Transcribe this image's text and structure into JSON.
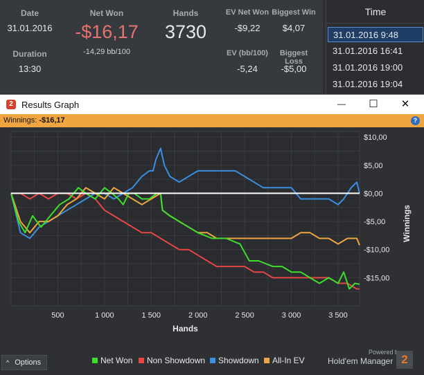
{
  "summary": {
    "date_label": "Date",
    "date": "31.01.2016",
    "duration_label": "Duration",
    "duration": "13:30",
    "net_won_label": "Net Won",
    "net_won": "-$16,17",
    "bb_per_100": "-14,29 bb/100",
    "hands_label": "Hands",
    "hands": "3730",
    "ev_net_won_label": "EV Net Won",
    "ev_net_won": "-$9,22",
    "biggest_win_label": "Biggest Win",
    "biggest_win": "$4,07",
    "ev_bb_label": "EV (bb/100)",
    "ev_bb": "-5,24",
    "biggest_loss_label": "Biggest Loss",
    "biggest_loss": "-$5,00",
    "net_color": "#e8726e"
  },
  "time_panel": {
    "header": "Time",
    "rows": [
      "31.01.2016 9:48",
      "31.01.2016 16:41",
      "31.01.2016 19:00",
      "31.01.2016 19:04"
    ],
    "selected": 0
  },
  "window": {
    "title": "Results Graph",
    "app_icon": "2",
    "minimize_glyph": "—",
    "maximize_glyph": "☐",
    "close_glyph": "✕",
    "winnings_label": "Winnings:",
    "winnings_value": "-$16,17",
    "help_glyph": "?"
  },
  "footer": {
    "options_label": "Options",
    "options_icon": "^",
    "powered_by": "Powered by",
    "brand": "Hold'em Manager",
    "brand_logo": "2"
  },
  "chart_data": {
    "type": "line",
    "xlabel": "Hands",
    "ylabel": "Winnings",
    "xlim": [
      0,
      3730
    ],
    "ylim": [
      -20,
      11
    ],
    "x_ticks": [
      500,
      1000,
      1500,
      2000,
      2500,
      3000,
      3500
    ],
    "x_tick_labels": [
      "500",
      "1 000",
      "1 500",
      "2 000",
      "2 500",
      "3 000",
      "3 500"
    ],
    "y_ticks": [
      10,
      5,
      0,
      -5,
      -10,
      -15
    ],
    "y_tick_labels": [
      "$10,00",
      "$5,00",
      "$0,00",
      "-$5,00",
      "-$10,00",
      "-$15,00"
    ],
    "grid": true,
    "legend_position": "bottom",
    "series": [
      {
        "name": "Net Won",
        "color": "#3dde2c",
        "x": [
          0,
          80,
          150,
          230,
          320,
          420,
          520,
          620,
          720,
          800,
          900,
          1000,
          1080,
          1150,
          1200,
          1260,
          1320,
          1400,
          1480,
          1560,
          1600,
          1620,
          1700,
          1800,
          1900,
          2000,
          2150,
          2300,
          2450,
          2550,
          2650,
          2800,
          2900,
          3000,
          3100,
          3200,
          3300,
          3400,
          3500,
          3560,
          3620,
          3680,
          3730
        ],
        "y": [
          0,
          -5,
          -7,
          -4,
          -6,
          -4,
          -2,
          -1,
          1,
          0,
          -1,
          1,
          0,
          -1,
          -2,
          0,
          0,
          -1,
          -1,
          0,
          0,
          -3,
          -4,
          -5,
          -6,
          -7,
          -8,
          -8,
          -9,
          -12,
          -12,
          -13,
          -13,
          -14,
          -14,
          -15,
          -16,
          -15,
          -16,
          -14,
          -17,
          -16,
          -16.17
        ]
      },
      {
        "name": "Non Showdown",
        "color": "#e84545",
        "x": [
          0,
          100,
          200,
          300,
          400,
          500,
          600,
          700,
          800,
          900,
          1000,
          1100,
          1200,
          1300,
          1400,
          1500,
          1600,
          1700,
          1800,
          1900,
          2000,
          2100,
          2200,
          2300,
          2400,
          2500,
          2600,
          2700,
          2800,
          2900,
          3000,
          3100,
          3200,
          3300,
          3400,
          3500,
          3600,
          3700,
          3730
        ],
        "y": [
          0,
          0,
          -1,
          0,
          -1,
          0,
          0,
          -1,
          0,
          -1,
          -3,
          -4,
          -5,
          -6,
          -7,
          -7,
          -8,
          -9,
          -10,
          -10,
          -11,
          -12,
          -13,
          -13,
          -13,
          -13,
          -14,
          -14,
          -15,
          -15,
          -15,
          -15,
          -15,
          -15,
          -15,
          -16,
          -16,
          -17,
          -17
        ]
      },
      {
        "name": "Showdown",
        "color": "#3a8fe0",
        "x": [
          0,
          100,
          200,
          300,
          400,
          500,
          600,
          700,
          800,
          900,
          1000,
          1100,
          1200,
          1300,
          1400,
          1480,
          1520,
          1550,
          1600,
          1640,
          1700,
          1800,
          1900,
          2000,
          2100,
          2200,
          2300,
          2400,
          2500,
          2600,
          2700,
          2800,
          2900,
          3000,
          3100,
          3200,
          3300,
          3400,
          3500,
          3560,
          3600,
          3640,
          3700,
          3730
        ],
        "y": [
          0,
          -7,
          -8,
          -6,
          -5,
          -4,
          -3,
          -2,
          -1,
          0,
          0,
          -1,
          0,
          1,
          3,
          4,
          4,
          6,
          8,
          5,
          3,
          2,
          3,
          4,
          4,
          4,
          4,
          4,
          3,
          2,
          1,
          1,
          1,
          1,
          -1,
          -1,
          -1,
          -1,
          -2,
          -1,
          0,
          1,
          2,
          0
        ]
      },
      {
        "name": "All-In EV",
        "color": "#f0a640",
        "x": [
          0,
          100,
          200,
          300,
          400,
          500,
          600,
          700,
          800,
          900,
          1000,
          1100,
          1200,
          1300,
          1400,
          1500,
          1600,
          1620,
          1700,
          1800,
          1900,
          2000,
          2100,
          2200,
          2300,
          2400,
          2500,
          2600,
          2700,
          2800,
          2900,
          3000,
          3100,
          3200,
          3300,
          3400,
          3500,
          3600,
          3700,
          3730
        ],
        "y": [
          0,
          -5,
          -7,
          -5,
          -5,
          -4,
          -2,
          -1,
          1,
          0,
          -1,
          1,
          0,
          -1,
          -2,
          -1,
          0,
          -3,
          -4,
          -5,
          -6,
          -7,
          -7,
          -8,
          -8,
          -8,
          -8,
          -8,
          -8,
          -8,
          -8,
          -8,
          -7,
          -7,
          -8,
          -8,
          -9,
          -8,
          -8,
          -9.22
        ]
      }
    ]
  }
}
